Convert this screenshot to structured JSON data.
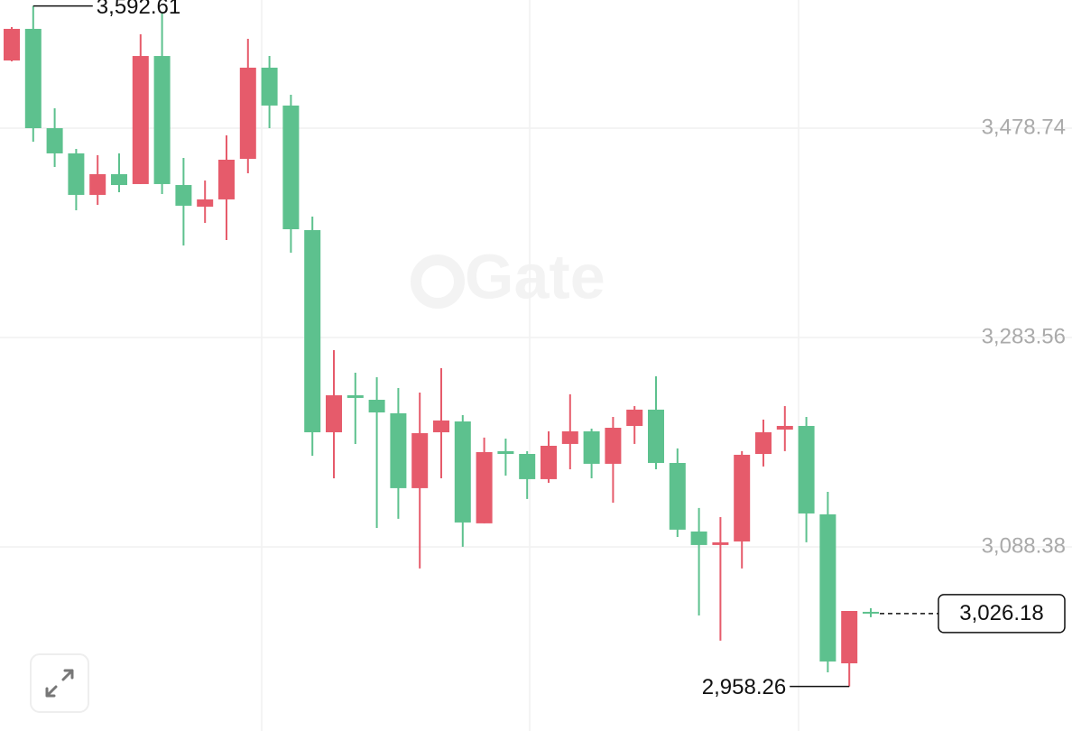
{
  "chart_data": {
    "type": "candlestick",
    "watermark": "Gate",
    "open": [
      3541.8,
      3571.3,
      3478.7,
      3455.2,
      3416.5,
      3435.8,
      3426.6,
      3546.0,
      3425.7,
      3405.5,
      3412.3,
      3450.1,
      3535.1,
      3499.8,
      3383.7,
      3195.2,
      3229.7,
      3225.5,
      3212.9,
      3143.1,
      3195.2,
      3205.3,
      3110.3,
      3177.6,
      3175.0,
      3151.5,
      3184.3,
      3196.1,
      3165.8,
      3201.1,
      3216.3,
      3166.6,
      3102.7,
      3090.1,
      3093.4,
      3175.0,
      3197.7,
      3201.1,
      3118.7,
      2979.8,
      3027.8
    ],
    "high": [
      3573.0,
      3592.61,
      3497.2,
      3459.4,
      3453.5,
      3455.2,
      3566.2,
      3585.6,
      3451.0,
      3429.9,
      3472.0,
      3562.0,
      3546.0,
      3509.9,
      3396.3,
      3271.8,
      3250.7,
      3246.5,
      3236.4,
      3232.2,
      3255.0,
      3211.2,
      3190.2,
      3189.3,
      3177.6,
      3196.1,
      3230.6,
      3198.6,
      3209.5,
      3219.6,
      3247.4,
      3180.1,
      3124.6,
      3116.1,
      3177.6,
      3207.0,
      3219.6,
      3209.5,
      3139.7,
      3028.6,
      3031.2
    ],
    "low": [
      3541.0,
      3466.1,
      3442.6,
      3402.2,
      3407.2,
      3419.0,
      3426.6,
      3417.3,
      3369.4,
      3390.4,
      3374.4,
      3436.7,
      3478.7,
      3362.6,
      3173.3,
      3152.3,
      3184.3,
      3106.0,
      3114.5,
      3068.2,
      3152.3,
      3088.4,
      3110.3,
      3154.8,
      3133.0,
      3148.1,
      3160.7,
      3152.3,
      3129.6,
      3184.3,
      3160.7,
      3097.6,
      3024.4,
      3000.9,
      3068.2,
      3163.3,
      3177.6,
      3092.6,
      2971.4,
      2958.26,
      3022.8
    ],
    "close": [
      3571.3,
      3478.7,
      3455.2,
      3416.5,
      3435.8,
      3425.7,
      3546.0,
      3426.6,
      3406.4,
      3412.3,
      3449.3,
      3535.1,
      3499.8,
      3384.5,
      3195.2,
      3229.7,
      3227.2,
      3213.7,
      3143.1,
      3194.4,
      3206.2,
      3111.1,
      3176.7,
      3175.0,
      3151.5,
      3182.6,
      3196.1,
      3165.8,
      3199.4,
      3216.3,
      3166.6,
      3104.4,
      3090.1,
      3092.6,
      3174.2,
      3195.2,
      3201.1,
      3119.5,
      2981.5,
      3028.6,
      3026.18
    ],
    "up_color": "#e65b6b",
    "down_color": "#5dc18e",
    "ylim": [
      2916.7,
      3598.2
    ],
    "yticks": [
      {
        "value": 3088.38,
        "label": "3,088.38"
      },
      {
        "value": 3283.56,
        "label": "3,283.56"
      },
      {
        "value": 3478.74,
        "label": "3,478.74"
      }
    ],
    "grid": true,
    "high_marker": {
      "value": 3592.61,
      "label": "3,592.61"
    },
    "low_marker": {
      "value": 2958.26,
      "label": "2,958.26"
    },
    "last_price": {
      "value": 3026.18,
      "label": "3,026.18"
    }
  }
}
